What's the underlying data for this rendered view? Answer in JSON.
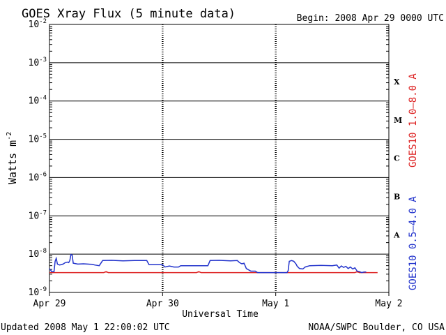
{
  "chart_data": {
    "type": "line",
    "title": "GOES Xray Flux (5 minute data)",
    "begin_label": "Begin:  2008 Apr 29 0000 UTC",
    "xlabel": "Universal Time",
    "ylabel": "Watts m",
    "ylabel_exponent": "-2",
    "x_ticks": [
      "Apr 29",
      "Apr 30",
      "May 1",
      "May 2"
    ],
    "xlim_days": [
      0,
      3
    ],
    "y_scale": "log",
    "ylim": [
      1e-09,
      0.01
    ],
    "y_ticks": [
      {
        "value": 0.01,
        "exp": "-2"
      },
      {
        "value": 0.001,
        "exp": "-3"
      },
      {
        "value": 0.0001,
        "exp": "-4"
      },
      {
        "value": 1e-05,
        "exp": "-5"
      },
      {
        "value": 1e-06,
        "exp": "-6"
      },
      {
        "value": 1e-07,
        "exp": "-7"
      },
      {
        "value": 1e-08,
        "exp": "-8"
      },
      {
        "value": 1e-09,
        "exp": "-9"
      }
    ],
    "y_tick_base": "10",
    "grid": true,
    "flare_classes": [
      {
        "label": "X",
        "value": 0.00032
      },
      {
        "label": "M",
        "value": 3.2e-05
      },
      {
        "label": "C",
        "value": 3.2e-06
      },
      {
        "label": "B",
        "value": 3.2e-07
      },
      {
        "label": "A",
        "value": 3.2e-08
      }
    ],
    "series": [
      {
        "name": "GOES10 1.0–8.0 A",
        "color": "#dd2222",
        "points": [
          [
            0.0,
            3.3e-09
          ],
          [
            0.48,
            3.3e-09
          ],
          [
            0.5,
            3.5e-09
          ],
          [
            0.52,
            3.3e-09
          ],
          [
            0.96,
            3.3e-09
          ],
          [
            1.3,
            3.3e-09
          ],
          [
            1.32,
            3.5e-09
          ],
          [
            1.34,
            3.3e-09
          ],
          [
            1.6,
            3.3e-09
          ],
          [
            2.2,
            3.3e-09
          ],
          [
            2.7,
            3.3e-09
          ],
          [
            2.72,
            3.5e-09
          ],
          [
            2.74,
            3.3e-09
          ],
          [
            2.9,
            3.3e-09
          ]
        ]
      },
      {
        "name": "GOES10 0.5–4.0 A",
        "color": "#2233cc",
        "points": [
          [
            0.0,
            4.2e-09
          ],
          [
            0.02,
            3.5e-09
          ],
          [
            0.04,
            3.5e-09
          ],
          [
            0.05,
            6.5e-09
          ],
          [
            0.06,
            7.8e-09
          ],
          [
            0.07,
            5.5e-09
          ],
          [
            0.09,
            5.2e-09
          ],
          [
            0.12,
            5.5e-09
          ],
          [
            0.14,
            6e-09
          ],
          [
            0.16,
            6.2e-09
          ],
          [
            0.17,
            6e-09
          ],
          [
            0.18,
            6.8e-09
          ],
          [
            0.19,
            9.8e-09
          ],
          [
            0.2,
            9.5e-09
          ],
          [
            0.21,
            5.8e-09
          ],
          [
            0.25,
            5.5e-09
          ],
          [
            0.3,
            5.6e-09
          ],
          [
            0.38,
            5.4e-09
          ],
          [
            0.4,
            5.2e-09
          ],
          [
            0.44,
            5e-09
          ],
          [
            0.47,
            6.8e-09
          ],
          [
            0.55,
            6.9e-09
          ],
          [
            0.65,
            6.7e-09
          ],
          [
            0.75,
            6.8e-09
          ],
          [
            0.86,
            6.8e-09
          ],
          [
            0.88,
            5.3e-09
          ],
          [
            1.0,
            5.3e-09
          ],
          [
            1.02,
            4.6e-09
          ],
          [
            1.06,
            4.9e-09
          ],
          [
            1.1,
            4.6e-09
          ],
          [
            1.14,
            4.6e-09
          ],
          [
            1.16,
            5e-09
          ],
          [
            1.3,
            5e-09
          ],
          [
            1.4,
            5e-09
          ],
          [
            1.42,
            6.8e-09
          ],
          [
            1.5,
            6.9e-09
          ],
          [
            1.6,
            6.7e-09
          ],
          [
            1.66,
            6.8e-09
          ],
          [
            1.68,
            6e-09
          ],
          [
            1.7,
            5.6e-09
          ],
          [
            1.72,
            5.8e-09
          ],
          [
            1.74,
            4.2e-09
          ],
          [
            1.78,
            3.6e-09
          ],
          [
            1.82,
            3.6e-09
          ],
          [
            1.84,
            3.3e-09
          ],
          [
            2.1,
            3.3e-09
          ],
          [
            2.11,
            3.7e-09
          ],
          [
            2.12,
            6.5e-09
          ],
          [
            2.14,
            6.8e-09
          ],
          [
            2.16,
            6.5e-09
          ],
          [
            2.18,
            5.5e-09
          ],
          [
            2.19,
            4.8e-09
          ],
          [
            2.21,
            4.2e-09
          ],
          [
            2.24,
            4.1e-09
          ],
          [
            2.26,
            4.6e-09
          ],
          [
            2.3,
            5e-09
          ],
          [
            2.4,
            5.1e-09
          ],
          [
            2.5,
            5e-09
          ],
          [
            2.54,
            5.2e-09
          ],
          [
            2.56,
            4.3e-09
          ],
          [
            2.58,
            4.9e-09
          ],
          [
            2.6,
            4.5e-09
          ],
          [
            2.62,
            4.8e-09
          ],
          [
            2.64,
            4.2e-09
          ],
          [
            2.66,
            4.6e-09
          ],
          [
            2.68,
            4.1e-09
          ],
          [
            2.7,
            4.4e-09
          ],
          [
            2.72,
            3.6e-09
          ],
          [
            2.74,
            3.5e-09
          ],
          [
            2.76,
            3.3e-09
          ],
          [
            2.78,
            3.4e-09
          ],
          [
            2.8,
            3.4e-09
          ]
        ]
      }
    ]
  },
  "footer": {
    "updated": "Updated 2008 May  1 22:00:02 UTC",
    "credit": "NOAA/SWPC Boulder, CO USA"
  }
}
